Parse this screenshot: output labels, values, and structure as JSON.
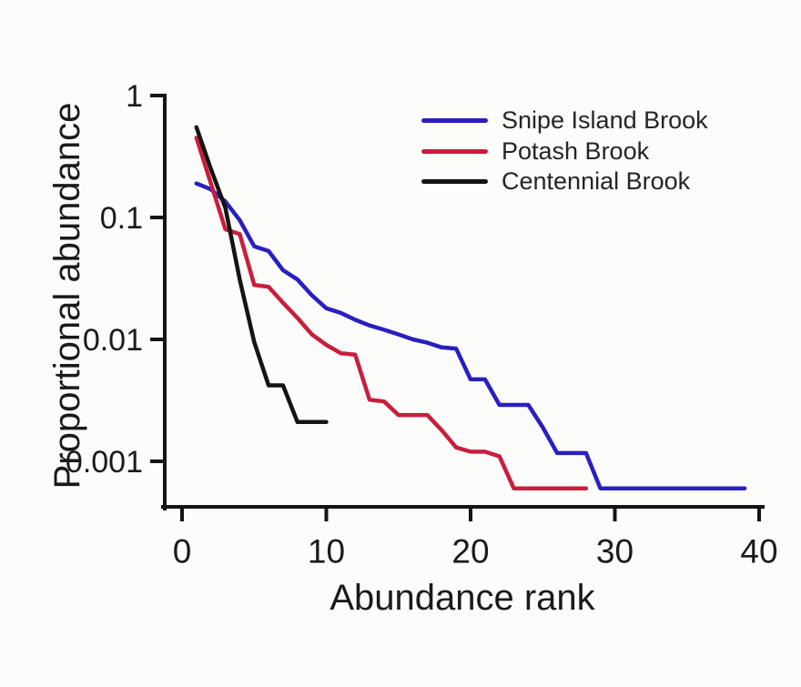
{
  "figure": {
    "background": "#fcfcfa",
    "axis_color": "#141414",
    "text_color": "#1a1a1a"
  },
  "chart_data": {
    "type": "line",
    "title": "",
    "xlabel": "Abundance rank",
    "ylabel": "Proportional abundance",
    "x_axis": {
      "min": 0,
      "max": 40,
      "ticks": [
        0,
        10,
        20,
        30,
        40
      ],
      "tick_labels": [
        "0",
        "10",
        "20",
        "30",
        "40"
      ]
    },
    "y_axis": {
      "scale": "log",
      "min": 0.0004,
      "max": 1,
      "ticks": [
        1,
        0.1,
        0.01,
        0.001
      ],
      "tick_labels": [
        "1",
        "0.1",
        "0.01",
        "0.001"
      ]
    },
    "grid": false,
    "legend": {
      "position": "top-right",
      "entries": [
        "Snipe Island Brook",
        "Potash Brook",
        "Centennial Brook"
      ]
    },
    "rank_start": 1,
    "series": [
      {
        "name": "Snipe Island Brook",
        "color": "#2a1fbe",
        "values": [
          0.19,
          0.17,
          0.135,
          0.095,
          0.058,
          0.053,
          0.037,
          0.031,
          0.023,
          0.018,
          0.0165,
          0.0145,
          0.013,
          0.012,
          0.011,
          0.01,
          0.0094,
          0.0086,
          0.0084,
          0.0047,
          0.0047,
          0.0029,
          0.0029,
          0.0029,
          0.0019,
          0.00117,
          0.00117,
          0.00117,
          0.0006,
          0.0006,
          0.0006,
          0.0006,
          0.0006,
          0.0006,
          0.0006,
          0.0006,
          0.0006,
          0.0006,
          0.0006
        ]
      },
      {
        "name": "Potash Brook",
        "color": "#c81e3c",
        "values": [
          0.45,
          0.19,
          0.08,
          0.073,
          0.028,
          0.027,
          0.02,
          0.015,
          0.011,
          0.009,
          0.0077,
          0.0075,
          0.0032,
          0.0031,
          0.0024,
          0.0024,
          0.0024,
          0.0018,
          0.0013,
          0.0012,
          0.0012,
          0.0011,
          0.0006,
          0.0006,
          0.0006,
          0.0006,
          0.0006,
          0.0006
        ]
      },
      {
        "name": "Centennial Brook",
        "color": "#141414",
        "values": [
          0.55,
          0.25,
          0.12,
          0.031,
          0.0095,
          0.0042,
          0.0042,
          0.0021,
          0.0021,
          0.0021
        ]
      }
    ]
  }
}
